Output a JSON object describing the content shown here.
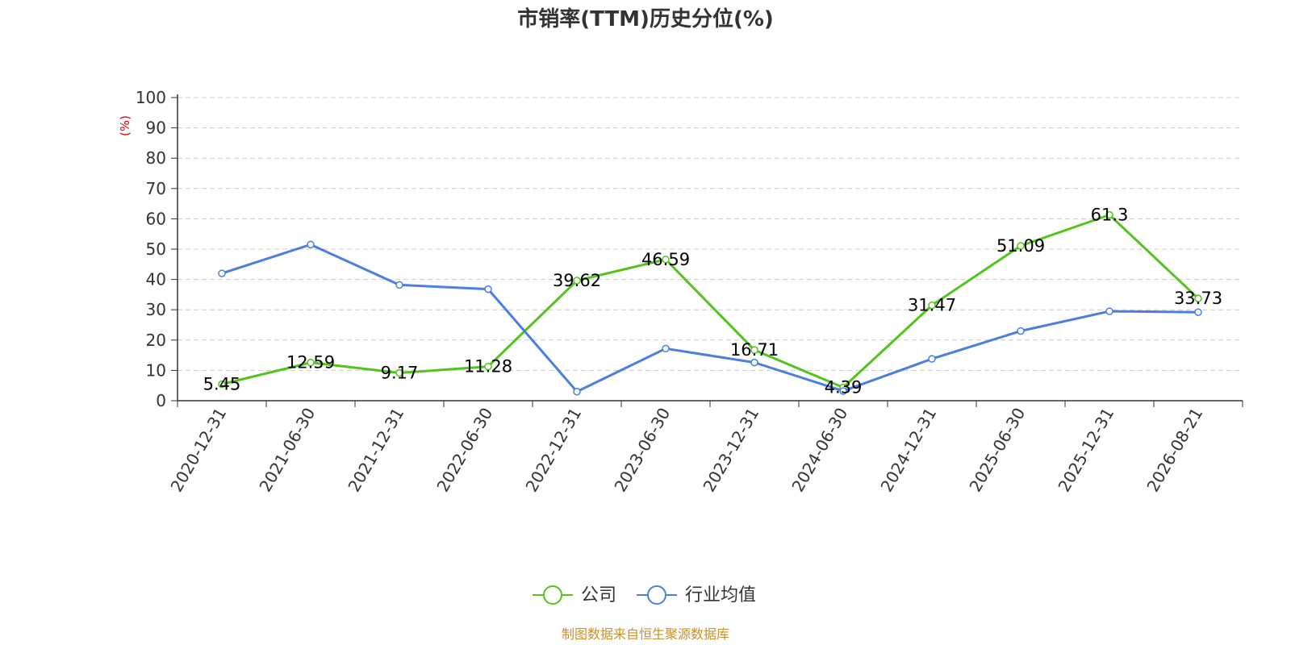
{
  "chart_data": {
    "type": "line",
    "title": "市销率(TTM)历史分位(%)",
    "ylabel": "(%)",
    "ylim": [
      0,
      100
    ],
    "yticks": [
      0,
      10,
      20,
      30,
      40,
      50,
      60,
      70,
      80,
      90,
      100
    ],
    "grid": "horizontal-dashed",
    "legend_position": "bottom-center",
    "categories": [
      "2020-12-31",
      "2021-06-30",
      "2021-12-31",
      "2022-06-30",
      "2022-12-31",
      "2023-06-30",
      "2023-12-31",
      "2024-06-30",
      "2024-12-31",
      "2025-06-30",
      "2025-12-31",
      "2026-08-21"
    ],
    "series": [
      {
        "name": "公司",
        "color": "#52c41a",
        "values": [
          5.45,
          12.59,
          9.17,
          11.28,
          39.62,
          46.59,
          16.71,
          4.39,
          31.47,
          51.09,
          61.3,
          33.73
        ],
        "labels": [
          "5.45",
          "12.59",
          "9.17",
          "11.28",
          "39.62",
          "46.59",
          "16.71",
          "4.39",
          "31.47",
          "51.09",
          "61.3",
          "33.73"
        ]
      },
      {
        "name": "行业均值",
        "color": "#4a7fe0",
        "values": [
          42.0,
          51.5,
          38.2,
          36.8,
          3.0,
          17.2,
          12.6,
          3.2,
          13.8,
          23.0,
          29.5,
          29.2
        ]
      }
    ]
  },
  "source": "制图数据来自恒生聚源数据库"
}
